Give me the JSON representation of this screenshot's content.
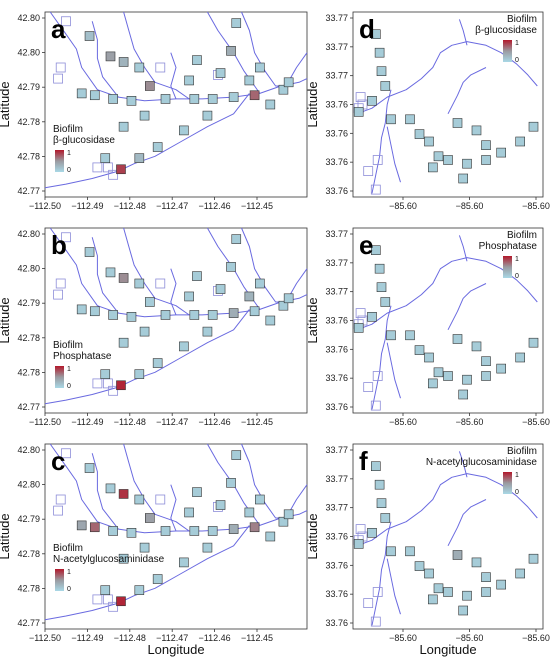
{
  "chart_data": [
    {
      "panel": "a",
      "type": "scatter",
      "site": "left",
      "legend_title": [
        "Biofilm",
        "β-glucosidase"
      ],
      "legend_min": "0",
      "legend_max": "1",
      "xlabel": "",
      "ylabel": "Latitude",
      "x_ticks": [
        "−112.50",
        "−112.49",
        "−112.48",
        "−112.47",
        "−112.46",
        "−112.45"
      ],
      "y_ticks": [
        "42.80",
        "42.80",
        "42.79",
        "42.78",
        "42.78",
        "42.77"
      ],
      "points": [
        {
          "x": -112.495,
          "y": 42.8,
          "v": 0.2
        },
        {
          "x": -112.492,
          "y": 42.796,
          "v": 0.45
        },
        {
          "x": -112.489,
          "y": 42.795,
          "v": 0.3
        },
        {
          "x": -112.492,
          "y": 42.789,
          "v": 0.1
        },
        {
          "x": -112.489,
          "y": 42.787,
          "v": 0.1
        },
        {
          "x": -112.485,
          "y": 42.786,
          "v": 0.1
        },
        {
          "x": -112.481,
          "y": 42.785,
          "v": 0.1
        },
        {
          "x": -112.477,
          "y": 42.787,
          "v": 0.55
        },
        {
          "x": -112.472,
          "y": 42.786,
          "v": 0.1
        },
        {
          "x": -112.468,
          "y": 42.785,
          "v": 0.1
        },
        {
          "x": -112.463,
          "y": 42.785,
          "v": 0.1
        },
        {
          "x": -112.459,
          "y": 42.786,
          "v": 0.1
        },
        {
          "x": -112.455,
          "y": 42.787,
          "v": 0.7
        },
        {
          "x": -112.451,
          "y": 42.788,
          "v": 0.1
        },
        {
          "x": -112.458,
          "y": 42.8,
          "v": 0.1
        },
        {
          "x": -112.462,
          "y": 42.797,
          "v": 0.35
        },
        {
          "x": -112.459,
          "y": 42.792,
          "v": 0.1
        },
        {
          "x": -112.465,
          "y": 42.78,
          "v": 0.1
        },
        {
          "x": -112.469,
          "y": 42.778,
          "v": 0.1
        },
        {
          "x": -112.474,
          "y": 42.776,
          "v": 0.1
        },
        {
          "x": -112.478,
          "y": 42.774,
          "v": 0.25
        },
        {
          "x": -112.481,
          "y": 42.773,
          "v": 0.85
        },
        {
          "x": -112.486,
          "y": 42.779,
          "v": 0.1
        }
      ]
    },
    {
      "panel": "b",
      "type": "scatter",
      "site": "left",
      "legend_title": [
        "Biofilm",
        "Phosphatase"
      ],
      "legend_min": "0",
      "legend_max": "1",
      "xlabel": "",
      "ylabel": "Latitude",
      "x_ticks": [
        "−112.50",
        "−112.49",
        "−112.48",
        "−112.47",
        "−112.46",
        "−112.45"
      ],
      "y_ticks": [
        "42.80",
        "42.80",
        "42.79",
        "42.78",
        "42.78",
        "42.77"
      ],
      "points": [
        {
          "x": -112.495,
          "y": 42.8,
          "v": 0.1
        },
        {
          "x": -112.492,
          "y": 42.796,
          "v": 0.1
        },
        {
          "x": -112.489,
          "y": 42.795,
          "v": 0.55
        },
        {
          "x": -112.492,
          "y": 42.789,
          "v": 0.1
        },
        {
          "x": -112.489,
          "y": 42.787,
          "v": 0.1
        },
        {
          "x": -112.485,
          "y": 42.786,
          "v": 0.1
        },
        {
          "x": -112.481,
          "y": 42.785,
          "v": 0.1
        },
        {
          "x": -112.477,
          "y": 42.787,
          "v": 0.1
        },
        {
          "x": -112.472,
          "y": 42.786,
          "v": 0.1
        },
        {
          "x": -112.468,
          "y": 42.785,
          "v": 0.1
        },
        {
          "x": -112.463,
          "y": 42.785,
          "v": 0.1
        },
        {
          "x": -112.459,
          "y": 42.786,
          "v": 0.35
        },
        {
          "x": -112.455,
          "y": 42.787,
          "v": 0.1
        },
        {
          "x": -112.451,
          "y": 42.788,
          "v": 0.1
        },
        {
          "x": -112.458,
          "y": 42.8,
          "v": 0.1
        },
        {
          "x": -112.462,
          "y": 42.797,
          "v": 0.1
        },
        {
          "x": -112.459,
          "y": 42.792,
          "v": 0.3
        },
        {
          "x": -112.465,
          "y": 42.78,
          "v": 0.1
        },
        {
          "x": -112.469,
          "y": 42.778,
          "v": 0.1
        },
        {
          "x": -112.474,
          "y": 42.776,
          "v": 0.1
        },
        {
          "x": -112.478,
          "y": 42.774,
          "v": 0.1
        },
        {
          "x": -112.481,
          "y": 42.773,
          "v": 0.95
        },
        {
          "x": -112.486,
          "y": 42.779,
          "v": 0.1
        }
      ]
    },
    {
      "panel": "c",
      "type": "scatter",
      "site": "left",
      "legend_title": [
        "Biofilm",
        "N-acetylglucosaminidase"
      ],
      "legend_min": "0",
      "legend_max": "1",
      "xlabel": "Longitude",
      "ylabel": "Latitude",
      "x_ticks": [
        "−112.50",
        "−112.49",
        "−112.48",
        "−112.47",
        "−112.46",
        "−112.45"
      ],
      "y_ticks": [
        "42.80",
        "42.80",
        "42.79",
        "42.78",
        "42.78",
        "42.77"
      ],
      "points": [
        {
          "x": -112.495,
          "y": 42.8,
          "v": 0.1
        },
        {
          "x": -112.492,
          "y": 42.796,
          "v": 0.1
        },
        {
          "x": -112.489,
          "y": 42.795,
          "v": 0.9
        },
        {
          "x": -112.49,
          "y": 42.792,
          "v": 0.4
        },
        {
          "x": -112.489,
          "y": 42.787,
          "v": 0.7
        },
        {
          "x": -112.485,
          "y": 42.786,
          "v": 0.1
        },
        {
          "x": -112.481,
          "y": 42.785,
          "v": 0.1
        },
        {
          "x": -112.477,
          "y": 42.787,
          "v": 0.45
        },
        {
          "x": -112.472,
          "y": 42.786,
          "v": 0.1
        },
        {
          "x": -112.468,
          "y": 42.785,
          "v": 0.1
        },
        {
          "x": -112.463,
          "y": 42.785,
          "v": 0.1
        },
        {
          "x": -112.459,
          "y": 42.786,
          "v": 0.35
        },
        {
          "x": -112.455,
          "y": 42.787,
          "v": 0.6
        },
        {
          "x": -112.451,
          "y": 42.788,
          "v": 0.1
        },
        {
          "x": -112.458,
          "y": 42.8,
          "v": 0.1
        },
        {
          "x": -112.462,
          "y": 42.797,
          "v": 0.1
        },
        {
          "x": -112.459,
          "y": 42.792,
          "v": 0.1
        },
        {
          "x": -112.465,
          "y": 42.78,
          "v": 0.1
        },
        {
          "x": -112.469,
          "y": 42.778,
          "v": 0.1
        },
        {
          "x": -112.474,
          "y": 42.776,
          "v": 0.1
        },
        {
          "x": -112.478,
          "y": 42.774,
          "v": 0.1
        },
        {
          "x": -112.481,
          "y": 42.773,
          "v": 0.95
        },
        {
          "x": -112.486,
          "y": 42.779,
          "v": 0.1
        }
      ]
    },
    {
      "panel": "d",
      "type": "scatter",
      "site": "right",
      "legend_title": [
        "Biofilm",
        "β-glucosidase"
      ],
      "legend_min": "0",
      "legend_max": "1",
      "xlabel": "",
      "ylabel": "Latitude",
      "x_ticks": [
        "−85.60",
        "−85.60",
        "−85.60"
      ],
      "y_ticks": [
        "33.77",
        "33.77",
        "33.77",
        "33.76",
        "33.76",
        "33.76",
        "33.76"
      ],
      "points": [
        {
          "x": 0.12,
          "y": 0.88,
          "v": 0.1
        },
        {
          "x": 0.14,
          "y": 0.78,
          "v": 0.1
        },
        {
          "x": 0.15,
          "y": 0.68,
          "v": 0.1
        },
        {
          "x": 0.17,
          "y": 0.6,
          "v": 0.1
        },
        {
          "x": 0.1,
          "y": 0.52,
          "v": 0.1
        },
        {
          "x": 0.03,
          "y": 0.46,
          "v": 0.1
        },
        {
          "x": 0.2,
          "y": 0.42,
          "v": 0.1
        },
        {
          "x": 0.3,
          "y": 0.42,
          "v": 0.1
        },
        {
          "x": 0.35,
          "y": 0.34,
          "v": 0.1
        },
        {
          "x": 0.4,
          "y": 0.3,
          "v": 0.1
        },
        {
          "x": 0.45,
          "y": 0.22,
          "v": 0.1
        },
        {
          "x": 0.5,
          "y": 0.2,
          "v": 0.1
        },
        {
          "x": 0.6,
          "y": 0.18,
          "v": 0.1
        },
        {
          "x": 0.7,
          "y": 0.2,
          "v": 0.1
        },
        {
          "x": 0.78,
          "y": 0.24,
          "v": 0.1
        },
        {
          "x": 0.88,
          "y": 0.3,
          "v": 0.1
        },
        {
          "x": 0.95,
          "y": 0.38,
          "v": 0.1
        },
        {
          "x": 0.55,
          "y": 0.4,
          "v": 0.1
        },
        {
          "x": 0.65,
          "y": 0.36,
          "v": 0.1
        },
        {
          "x": 0.58,
          "y": 0.1,
          "v": 0.1
        },
        {
          "x": 0.42,
          "y": 0.16,
          "v": 0.1
        },
        {
          "x": 0.7,
          "y": 0.28,
          "v": 0.1
        }
      ]
    },
    {
      "panel": "e",
      "type": "scatter",
      "site": "right",
      "legend_title": [
        "Biofilm",
        "Phosphatase"
      ],
      "legend_min": "0",
      "legend_max": "1",
      "xlabel": "",
      "ylabel": "Latitude",
      "x_ticks": [
        "−85.60",
        "−85.60",
        "−85.60"
      ],
      "y_ticks": [
        "33.77",
        "33.77",
        "33.77",
        "33.76",
        "33.76",
        "33.76",
        "33.76"
      ],
      "points": [
        {
          "x": 0.12,
          "y": 0.88,
          "v": 0.1
        },
        {
          "x": 0.14,
          "y": 0.78,
          "v": 0.1
        },
        {
          "x": 0.15,
          "y": 0.68,
          "v": 0.1
        },
        {
          "x": 0.17,
          "y": 0.6,
          "v": 0.1
        },
        {
          "x": 0.1,
          "y": 0.52,
          "v": 0.1
        },
        {
          "x": 0.03,
          "y": 0.46,
          "v": 0.1
        },
        {
          "x": 0.2,
          "y": 0.42,
          "v": 0.1
        },
        {
          "x": 0.3,
          "y": 0.42,
          "v": 0.1
        },
        {
          "x": 0.35,
          "y": 0.34,
          "v": 0.1
        },
        {
          "x": 0.4,
          "y": 0.3,
          "v": 0.1
        },
        {
          "x": 0.45,
          "y": 0.22,
          "v": 0.1
        },
        {
          "x": 0.5,
          "y": 0.2,
          "v": 0.1
        },
        {
          "x": 0.6,
          "y": 0.18,
          "v": 0.1
        },
        {
          "x": 0.7,
          "y": 0.2,
          "v": 0.1
        },
        {
          "x": 0.78,
          "y": 0.24,
          "v": 0.1
        },
        {
          "x": 0.88,
          "y": 0.3,
          "v": 0.1
        },
        {
          "x": 0.95,
          "y": 0.38,
          "v": 0.1
        },
        {
          "x": 0.55,
          "y": 0.4,
          "v": 0.1
        },
        {
          "x": 0.65,
          "y": 0.36,
          "v": 0.1
        },
        {
          "x": 0.58,
          "y": 0.1,
          "v": 0.1
        },
        {
          "x": 0.42,
          "y": 0.16,
          "v": 0.1
        },
        {
          "x": 0.7,
          "y": 0.28,
          "v": 0.1
        }
      ]
    },
    {
      "panel": "f",
      "type": "scatter",
      "site": "right",
      "legend_title": [
        "Biofilm",
        "N-acetylglucosaminidase"
      ],
      "legend_min": "0",
      "legend_max": "1",
      "xlabel": "Longitude",
      "ylabel": "Latitude",
      "x_ticks": [
        "−85.60",
        "−85.60",
        "−85.60"
      ],
      "y_ticks": [
        "33.77",
        "33.77",
        "33.77",
        "33.76",
        "33.76",
        "33.76",
        "33.76"
      ],
      "points": [
        {
          "x": 0.12,
          "y": 0.88,
          "v": 0.1
        },
        {
          "x": 0.14,
          "y": 0.78,
          "v": 0.1
        },
        {
          "x": 0.15,
          "y": 0.68,
          "v": 0.1
        },
        {
          "x": 0.17,
          "y": 0.6,
          "v": 0.1
        },
        {
          "x": 0.1,
          "y": 0.52,
          "v": 0.1
        },
        {
          "x": 0.03,
          "y": 0.46,
          "v": 0.1
        },
        {
          "x": 0.2,
          "y": 0.42,
          "v": 0.1
        },
        {
          "x": 0.3,
          "y": 0.42,
          "v": 0.1
        },
        {
          "x": 0.35,
          "y": 0.34,
          "v": 0.1
        },
        {
          "x": 0.4,
          "y": 0.3,
          "v": 0.1
        },
        {
          "x": 0.45,
          "y": 0.22,
          "v": 0.1
        },
        {
          "x": 0.5,
          "y": 0.2,
          "v": 0.1
        },
        {
          "x": 0.6,
          "y": 0.18,
          "v": 0.1
        },
        {
          "x": 0.7,
          "y": 0.2,
          "v": 0.1
        },
        {
          "x": 0.78,
          "y": 0.24,
          "v": 0.1
        },
        {
          "x": 0.88,
          "y": 0.3,
          "v": 0.1
        },
        {
          "x": 0.95,
          "y": 0.38,
          "v": 0.1
        },
        {
          "x": 0.55,
          "y": 0.4,
          "v": 0.35
        },
        {
          "x": 0.65,
          "y": 0.36,
          "v": 0.1
        },
        {
          "x": 0.58,
          "y": 0.1,
          "v": 0.1
        },
        {
          "x": 0.42,
          "y": 0.16,
          "v": 0.1
        },
        {
          "x": 0.7,
          "y": 0.28,
          "v": 0.1
        }
      ]
    }
  ],
  "colors": {
    "low": "#a9d8e6",
    "mid": "#9a9aa0",
    "high": "#b2182b",
    "river": "#6a6ae0",
    "marker_edge": "#333333"
  }
}
